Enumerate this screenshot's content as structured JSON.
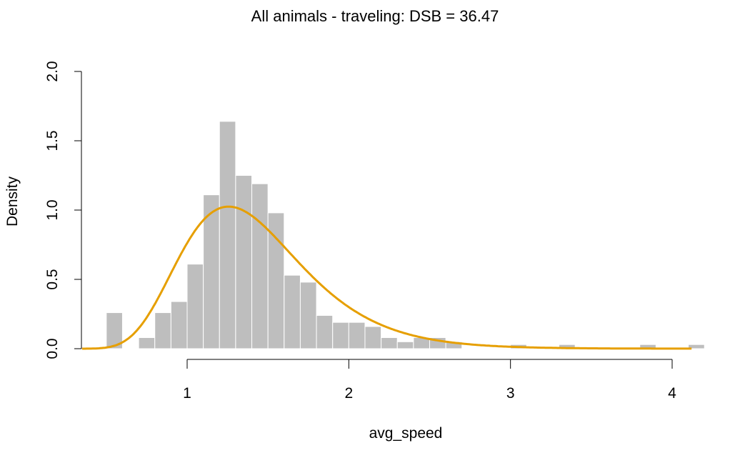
{
  "chart_data": {
    "type": "bar",
    "title": "All animals - traveling: DSB = 36.47",
    "xlabel": "avg_speed",
    "ylabel": "Density",
    "xlim": [
      0.35,
      4.2
    ],
    "ylim": [
      0,
      2.0
    ],
    "x_ticks": [
      "1",
      "2",
      "3",
      "4"
    ],
    "y_ticks": [
      "0.0",
      "0.5",
      "1.0",
      "1.5",
      "2.0"
    ],
    "grid": false,
    "bin_width": 0.1,
    "bins": [
      {
        "x0": 0.5,
        "value": 0.26
      },
      {
        "x0": 0.7,
        "value": 0.08
      },
      {
        "x0": 0.8,
        "value": 0.26
      },
      {
        "x0": 0.9,
        "value": 0.34
      },
      {
        "x0": 1.0,
        "value": 0.61
      },
      {
        "x0": 1.1,
        "value": 1.11
      },
      {
        "x0": 1.2,
        "value": 1.64
      },
      {
        "x0": 1.3,
        "value": 1.25
      },
      {
        "x0": 1.4,
        "value": 1.19
      },
      {
        "x0": 1.5,
        "value": 0.98
      },
      {
        "x0": 1.6,
        "value": 0.53
      },
      {
        "x0": 1.7,
        "value": 0.48
      },
      {
        "x0": 1.8,
        "value": 0.24
      },
      {
        "x0": 1.9,
        "value": 0.19
      },
      {
        "x0": 2.0,
        "value": 0.19
      },
      {
        "x0": 2.1,
        "value": 0.16
      },
      {
        "x0": 2.2,
        "value": 0.08
      },
      {
        "x0": 2.3,
        "value": 0.05
      },
      {
        "x0": 2.4,
        "value": 0.08
      },
      {
        "x0": 2.5,
        "value": 0.08
      },
      {
        "x0": 2.6,
        "value": 0.05
      },
      {
        "x0": 3.0,
        "value": 0.03
      },
      {
        "x0": 3.3,
        "value": 0.03
      },
      {
        "x0": 3.8,
        "value": 0.03
      },
      {
        "x0": 4.1,
        "value": 0.03
      }
    ],
    "bar_color": "#bebebe",
    "bar_border": "#ffffff",
    "curve": {
      "type": "lognormal-density",
      "meanlog": 0.3162,
      "sdlog": 0.2965,
      "x_range": [
        0.35,
        4.12
      ],
      "color": "#e69f00"
    }
  }
}
